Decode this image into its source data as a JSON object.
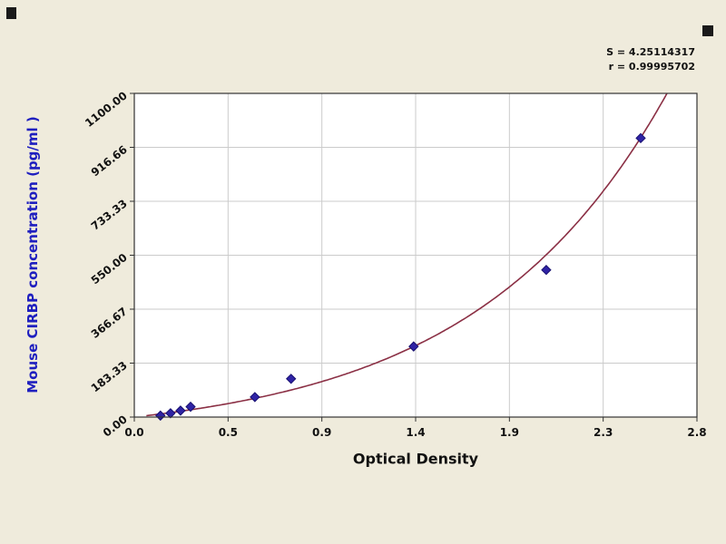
{
  "page": {
    "background": "#efebdc"
  },
  "chart_data": {
    "type": "scatter",
    "title": "",
    "xlabel": "Optical Density",
    "ylabel": "Mouse CIRBP concentration (pg/ml )",
    "xlim": [
      0.0,
      2.8
    ],
    "ylim": [
      0.0,
      1100.0
    ],
    "x_ticks": [
      "0.0",
      "0.5",
      "0.9",
      "1.4",
      "1.9",
      "2.3",
      "2.8"
    ],
    "y_ticks": [
      "0.00",
      "183.33",
      "366.67",
      "550.00",
      "733.33",
      "916.66",
      "1100.00"
    ],
    "grid": true,
    "legend_position": "none",
    "annotations": {
      "s_label": "S = 4.25114317",
      "r_label": "r = 0.99995702"
    },
    "series": [
      {
        "name": "standard-points",
        "type": "scatter",
        "marker": "diamond",
        "color": "#2f23a5",
        "edge_color": "#181070",
        "points": [
          [
            0.13,
            5
          ],
          [
            0.18,
            13
          ],
          [
            0.23,
            22
          ],
          [
            0.28,
            35
          ],
          [
            0.6,
            68
          ],
          [
            0.78,
            130
          ],
          [
            1.39,
            240
          ],
          [
            2.05,
            500
          ],
          [
            2.52,
            948
          ]
        ]
      },
      {
        "name": "fitted-curve",
        "type": "line",
        "color": "#8b3045",
        "fit": {
          "model": "y = a*(exp(b*x)-1)",
          "a": 72.5,
          "b": 1.05,
          "x_start": 0.06,
          "x_end": 2.8
        }
      }
    ],
    "colors": {
      "plot_background": "#ffffff",
      "grid": "#cbcbcb",
      "border": "#333333",
      "axis_text": "#111111",
      "y_title": "#1f1fbf"
    }
  }
}
